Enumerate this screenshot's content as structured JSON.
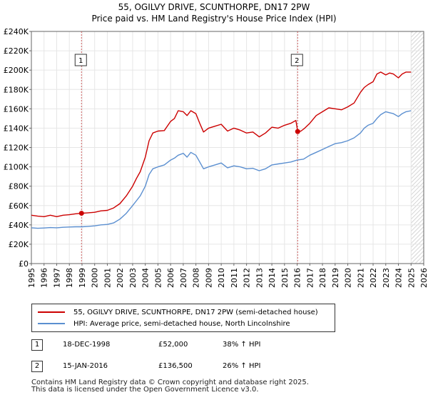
{
  "chart_data": {
    "type": "line",
    "title": "55, OGILVY DRIVE, SCUNTHORPE, DN17 2PW",
    "subtitle": "Price paid vs. HM Land Registry's House Price Index (HPI)",
    "xlim": [
      1995,
      2026
    ],
    "ylim": [
      0,
      240000
    ],
    "x_ticks": [
      "1995",
      "1996",
      "1997",
      "1998",
      "1999",
      "2000",
      "2001",
      "2002",
      "2003",
      "2004",
      "2005",
      "2006",
      "2007",
      "2008",
      "2009",
      "2010",
      "2011",
      "2012",
      "2013",
      "2014",
      "2015",
      "2016",
      "2017",
      "2018",
      "2019",
      "2020",
      "2021",
      "2022",
      "2023",
      "2024",
      "2025",
      "2026"
    ],
    "y_ticks": [
      {
        "value": 0,
        "label": "£0"
      },
      {
        "value": 20000,
        "label": "£20K"
      },
      {
        "value": 40000,
        "label": "£40K"
      },
      {
        "value": 60000,
        "label": "£60K"
      },
      {
        "value": 80000,
        "label": "£80K"
      },
      {
        "value": 100000,
        "label": "£100K"
      },
      {
        "value": 120000,
        "label": "£120K"
      },
      {
        "value": 140000,
        "label": "£140K"
      },
      {
        "value": 160000,
        "label": "£160K"
      },
      {
        "value": 180000,
        "label": "£180K"
      },
      {
        "value": 200000,
        "label": "£200K"
      },
      {
        "value": 220000,
        "label": "£220K"
      },
      {
        "value": 240000,
        "label": "£240K"
      }
    ],
    "grid": true,
    "shaded_region": {
      "from": 2025.0,
      "to": 2026
    },
    "series": [
      {
        "name": "55, OGILVY DRIVE, SCUNTHORPE, DN17 2PW (semi-detached house)",
        "color": "#cc0000",
        "x": [
          1995.0,
          1995.5,
          1996.0,
          1996.5,
          1997.0,
          1997.5,
          1998.0,
          1998.5,
          1998.96,
          1999.5,
          2000.0,
          2000.5,
          2001.0,
          2001.5,
          2002.0,
          2002.5,
          2003.0,
          2003.3,
          2003.6,
          2004.0,
          2004.3,
          2004.6,
          2005.0,
          2005.5,
          2006.0,
          2006.3,
          2006.6,
          2007.0,
          2007.3,
          2007.6,
          2008.0,
          2008.3,
          2008.6,
          2009.0,
          2009.5,
          2010.0,
          2010.5,
          2011.0,
          2011.5,
          2012.0,
          2012.5,
          2013.0,
          2013.5,
          2014.0,
          2014.5,
          2015.0,
          2015.5,
          2015.9,
          2016.04,
          2016.3,
          2016.6,
          2017.0,
          2017.5,
          2018.0,
          2018.5,
          2019.0,
          2019.5,
          2020.0,
          2020.5,
          2021.0,
          2021.3,
          2021.6,
          2022.0,
          2022.3,
          2022.6,
          2023.0,
          2023.3,
          2023.6,
          2024.0,
          2024.3,
          2024.6,
          2025.0
        ],
        "values": [
          50000,
          49000,
          48500,
          50000,
          48500,
          50000,
          50500,
          51500,
          52000,
          52500,
          53000,
          54500,
          55000,
          57500,
          62000,
          70000,
          80000,
          88000,
          95000,
          110000,
          127000,
          135000,
          137000,
          137500,
          147000,
          150000,
          158000,
          157000,
          153000,
          158000,
          155000,
          145000,
          136000,
          140000,
          142000,
          144000,
          137000,
          140000,
          138000,
          135000,
          136000,
          131000,
          135000,
          141000,
          140000,
          143000,
          145000,
          148000,
          136500,
          137000,
          140000,
          145000,
          153000,
          157000,
          161000,
          160000,
          159000,
          162000,
          166000,
          177000,
          182000,
          185000,
          188000,
          196000,
          198000,
          195000,
          197000,
          196000,
          192000,
          196000,
          198000,
          198000
        ]
      },
      {
        "name": "HPI: Average price, semi-detached house, North Lincolnshire",
        "color": "#5b8fd0",
        "x": [
          1995.0,
          1995.5,
          1996.0,
          1996.5,
          1997.0,
          1997.5,
          1998.0,
          1998.5,
          1999.0,
          1999.5,
          2000.0,
          2000.5,
          2001.0,
          2001.5,
          2002.0,
          2002.5,
          2003.0,
          2003.3,
          2003.6,
          2004.0,
          2004.3,
          2004.6,
          2005.0,
          2005.5,
          2006.0,
          2006.3,
          2006.6,
          2007.0,
          2007.3,
          2007.6,
          2008.0,
          2008.3,
          2008.6,
          2009.0,
          2009.5,
          2010.0,
          2010.5,
          2011.0,
          2011.5,
          2012.0,
          2012.5,
          2013.0,
          2013.5,
          2014.0,
          2014.5,
          2015.0,
          2015.5,
          2016.0,
          2016.5,
          2017.0,
          2017.5,
          2018.0,
          2018.5,
          2019.0,
          2019.5,
          2020.0,
          2020.5,
          2021.0,
          2021.3,
          2021.6,
          2022.0,
          2022.3,
          2022.6,
          2023.0,
          2023.3,
          2023.6,
          2024.0,
          2024.3,
          2024.6,
          2025.0
        ],
        "values": [
          37000,
          36500,
          36800,
          37200,
          37000,
          37500,
          37800,
          38000,
          38000,
          38500,
          39000,
          40000,
          40500,
          42000,
          46000,
          52000,
          60000,
          65000,
          70000,
          80000,
          92000,
          98000,
          100000,
          102000,
          107000,
          109000,
          112000,
          114000,
          110000,
          115000,
          112000,
          105000,
          98000,
          100000,
          102000,
          104000,
          99000,
          101000,
          100000,
          98000,
          98500,
          96000,
          98000,
          102000,
          103000,
          104000,
          105000,
          107000,
          108000,
          112000,
          115000,
          118000,
          121000,
          124000,
          125000,
          127000,
          130000,
          135000,
          140000,
          143000,
          145000,
          150000,
          154000,
          157000,
          156000,
          155000,
          152000,
          155000,
          157000,
          158000
        ]
      }
    ],
    "annotations": [
      {
        "label": "1",
        "x": 1998.96,
        "value": 52000
      },
      {
        "label": "2",
        "x": 2016.04,
        "value": 136500
      }
    ],
    "legend_placement": "bottom"
  },
  "legend": {
    "items": [
      {
        "label": "55, OGILVY DRIVE, SCUNTHORPE, DN17 2PW (semi-detached house)",
        "color": "#cc0000"
      },
      {
        "label": "HPI: Average price, semi-detached house, North Lincolnshire",
        "color": "#5b8fd0"
      }
    ]
  },
  "sales": [
    {
      "num": "1",
      "date": "18-DEC-1998",
      "price": "£52,000",
      "hpi": "38% ↑ HPI"
    },
    {
      "num": "2",
      "date": "15-JAN-2016",
      "price": "£136,500",
      "hpi": "26% ↑ HPI"
    }
  ],
  "footer": {
    "line1": "Contains HM Land Registry data © Crown copyright and database right 2025.",
    "line2": "This data is licensed under the Open Government Licence v3.0."
  }
}
